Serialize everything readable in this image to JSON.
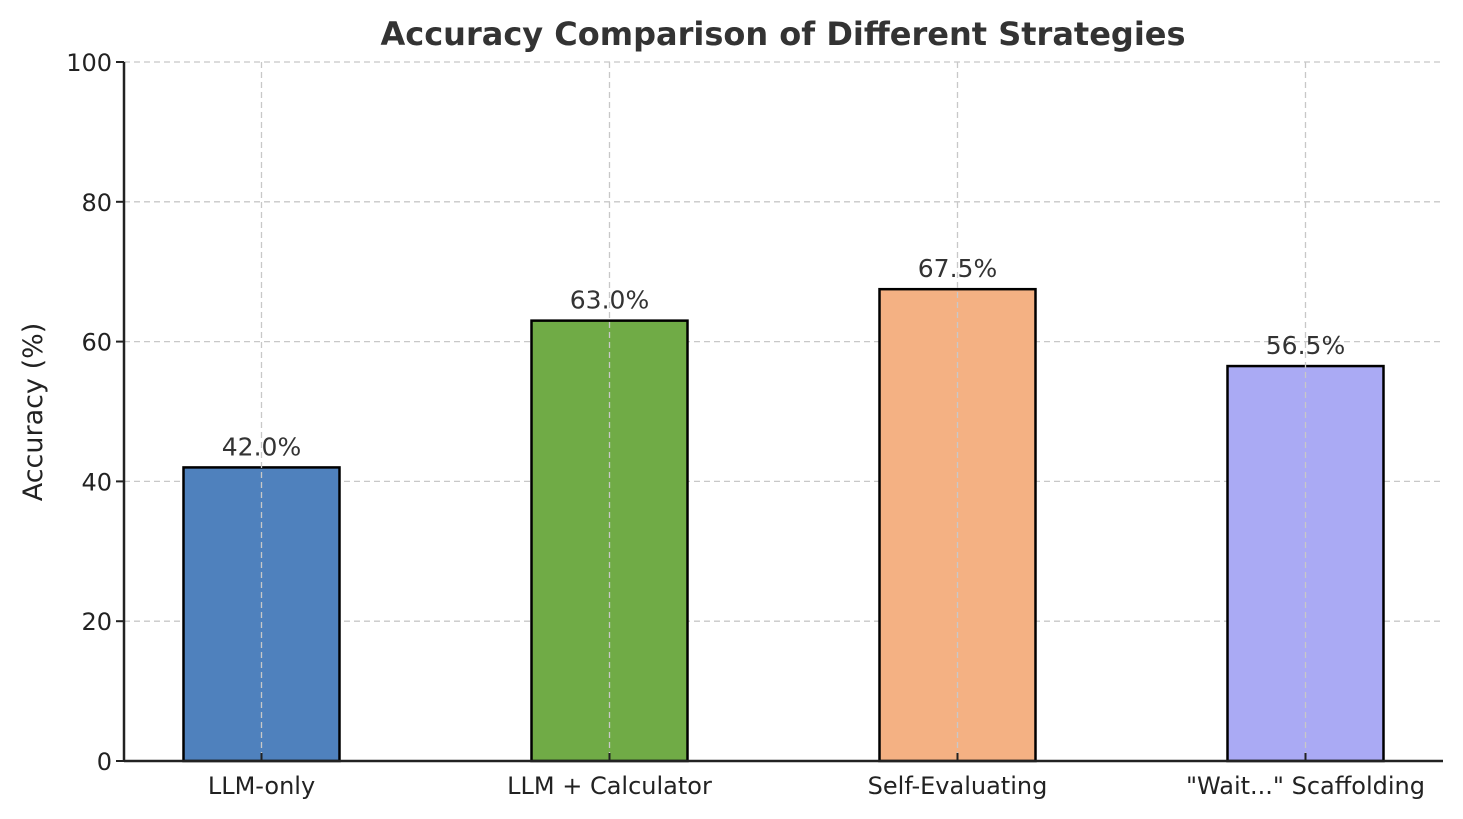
{
  "chart_data": {
    "type": "bar",
    "title": "Accuracy Comparison of Different Strategies",
    "xlabel": "",
    "ylabel": "Accuracy (%)",
    "categories": [
      "LLM-only",
      "LLM + Calculator",
      "Self-Evaluating",
      "\"Wait...\" Scaffolding"
    ],
    "values": [
      42.0,
      63.0,
      67.5,
      56.5
    ],
    "value_labels": [
      "42.0%",
      "63.0%",
      "67.5%",
      "56.5%"
    ],
    "colors": [
      "#4f81bd",
      "#70ab46",
      "#f4b183",
      "#aaaaf4"
    ],
    "ylim": [
      0,
      100
    ],
    "yticks": [
      0,
      20,
      40,
      60,
      80,
      100
    ],
    "grid": true,
    "legend": "none"
  }
}
